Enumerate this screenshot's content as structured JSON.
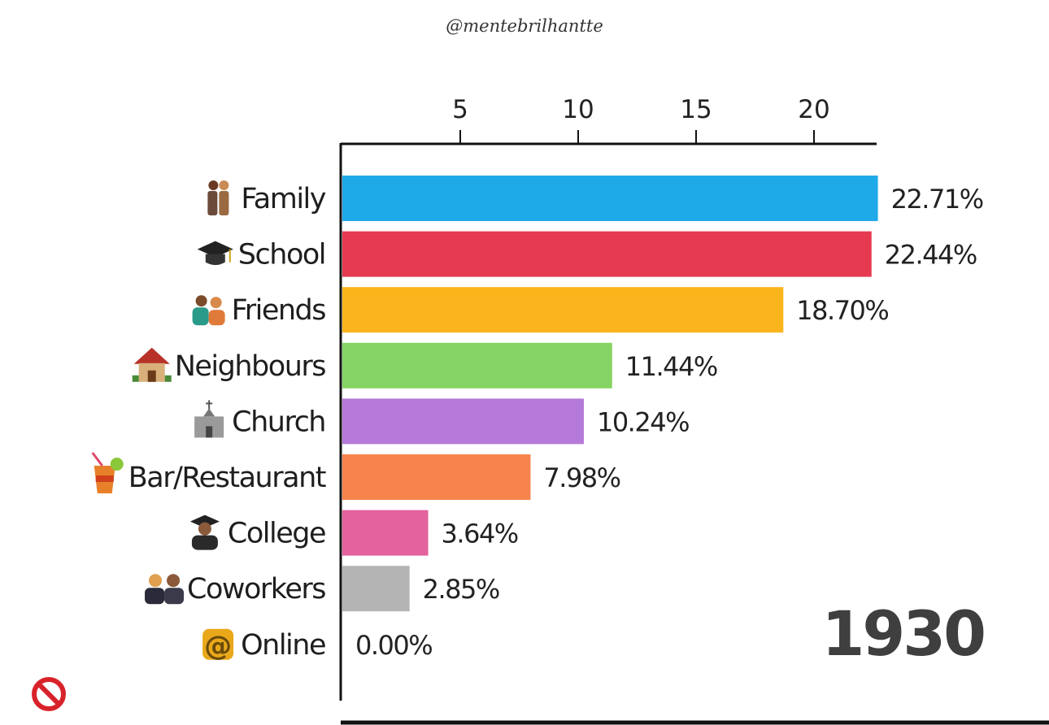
{
  "watermark": "@mentebrilhantte",
  "chart_data": {
    "type": "bar",
    "orientation": "horizontal",
    "categories": [
      "Family",
      "School",
      "Friends",
      "Neighbours",
      "Church",
      "Bar/Restaurant",
      "College",
      "Coworkers",
      "Online"
    ],
    "icons": [
      "family-icon",
      "graduation-cap-icon",
      "friends-icon",
      "house-icon",
      "church-icon",
      "tropical-drink-icon",
      "graduate-icon",
      "coworkers-icon",
      "at-sign-icon"
    ],
    "values": [
      22.71,
      22.44,
      18.7,
      11.44,
      10.24,
      7.98,
      3.64,
      2.85,
      0.0
    ],
    "value_labels": [
      "22.71%",
      "22.44%",
      "18.70%",
      "11.44%",
      "10.24%",
      "7.98%",
      "3.64%",
      "2.85%",
      "0.00%"
    ],
    "colors": [
      "#1ea9e9",
      "#e63a51",
      "#fbb41c",
      "#86d464",
      "#b57ad9",
      "#f6844b",
      "#e4629d",
      "#b4b4b4",
      "#cccccc"
    ],
    "xticks": [
      5,
      10,
      15,
      20
    ],
    "xtick_labels": [
      "5",
      "10",
      "15",
      "20"
    ],
    "xlim": [
      0,
      22.71
    ],
    "axis_position": "top",
    "year": "1930",
    "grid": false
  }
}
